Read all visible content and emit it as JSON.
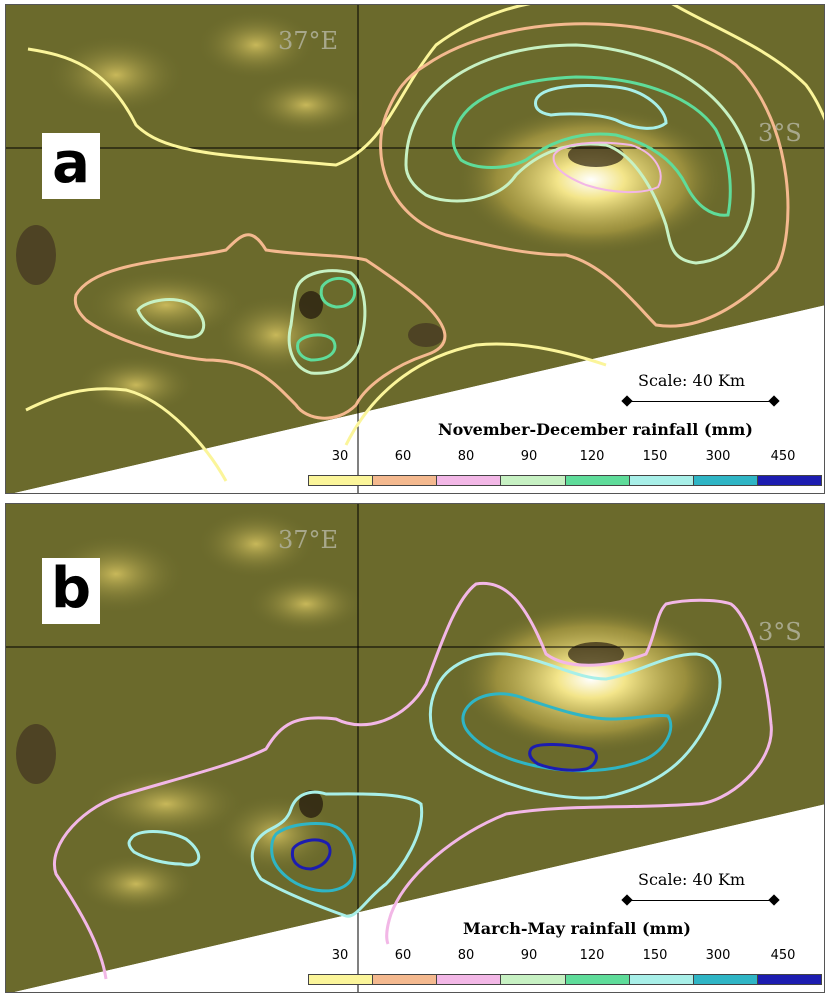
{
  "panels": [
    {
      "id": "a",
      "letter": "a",
      "lon_label": "37°E",
      "lat_label": "3°S",
      "scale_label": "Scale: 40 Km",
      "legend_title": "November-December rainfall (mm)"
    },
    {
      "id": "b",
      "letter": "b",
      "lon_label": "37°E",
      "lat_label": "3°S",
      "scale_label": "Scale: 40 Km",
      "legend_title": "March-May rainfall (mm)"
    }
  ],
  "legend": {
    "levels": [
      "30",
      "60",
      "80",
      "90",
      "120",
      "150",
      "300",
      "450"
    ],
    "colors": [
      "#fbf59a",
      "#f4b98f",
      "#f2b7e6",
      "#c7f1c3",
      "#5fdc9a",
      "#a8efe8",
      "#2fb5c5",
      "#1c1cb0"
    ]
  },
  "colors": {
    "terrain_base": "#6b6a2c",
    "grid_line": "#000000",
    "label_gray": "#a8a88c"
  }
}
